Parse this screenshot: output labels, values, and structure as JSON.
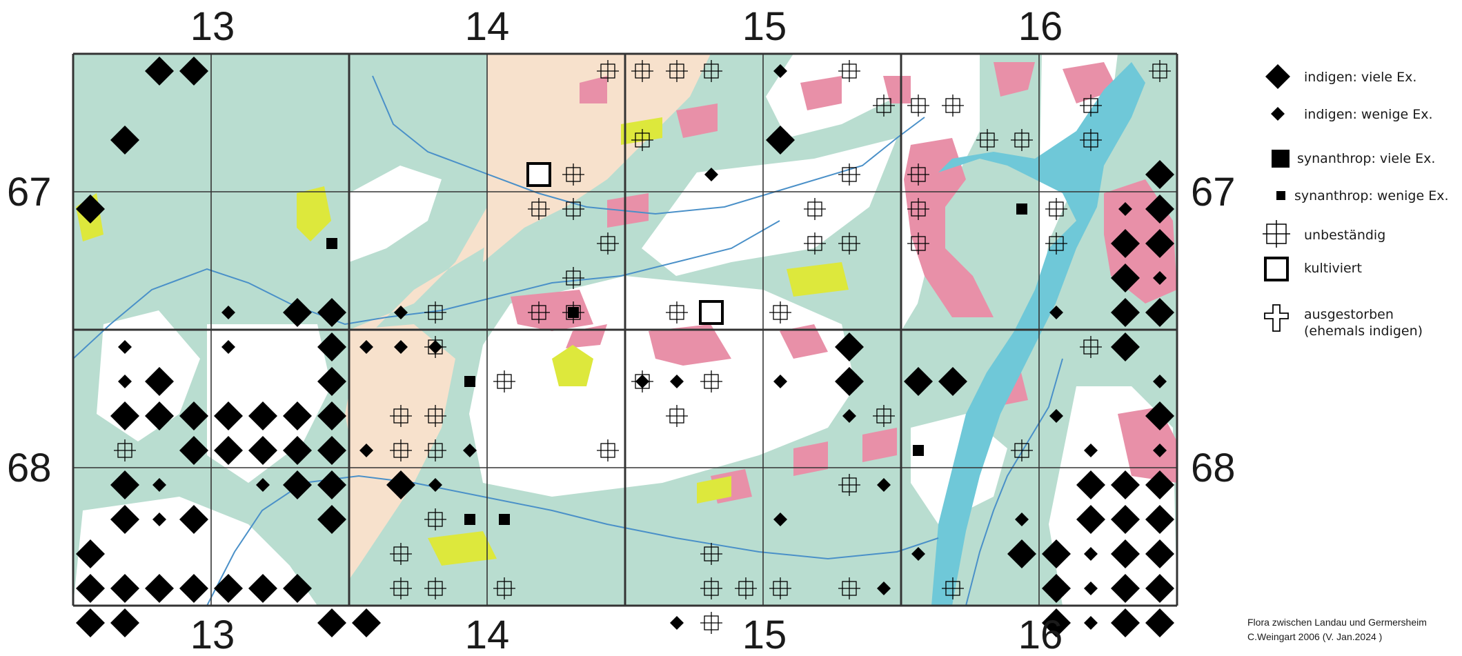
{
  "map": {
    "columns": [
      "13",
      "14",
      "15",
      "16"
    ],
    "rows": [
      "67",
      "68"
    ],
    "colors": {
      "forest": "#b9ddd0",
      "settlement": "#e890a8",
      "open_land": "#ffffff",
      "farmland": "#f7e1cc",
      "grassland": "#dde83c",
      "water": "#6fc8d8",
      "river": "#4a90c8",
      "grid": "#333333"
    },
    "symbols": {
      "indigen_viele": [
        {
          "c": 1,
          "r": 2
        },
        {
          "c": 2,
          "r": 0
        },
        {
          "c": 3,
          "r": 0
        },
        {
          "c": 0,
          "r": 4
        },
        {
          "c": 4,
          "r": 11
        },
        {
          "c": 2,
          "r": 9
        },
        {
          "c": 1,
          "r": 10
        },
        {
          "c": 2,
          "r": 10
        },
        {
          "c": 3,
          "r": 10
        },
        {
          "c": 3,
          "r": 11
        },
        {
          "c": 1,
          "r": 12
        },
        {
          "c": 3,
          "r": 13
        },
        {
          "c": 1,
          "r": 13
        },
        {
          "c": 0,
          "r": 14
        },
        {
          "c": 0,
          "r": 15
        },
        {
          "c": 1,
          "r": 15
        },
        {
          "c": 2,
          "r": 15
        },
        {
          "c": 3,
          "r": 15
        },
        {
          "c": 0,
          "r": 16
        },
        {
          "c": 1,
          "r": 16
        },
        {
          "c": 4,
          "r": 10
        },
        {
          "c": 5,
          "r": 10
        },
        {
          "c": 6,
          "r": 10
        },
        {
          "c": 7,
          "r": 9
        },
        {
          "c": 7,
          "r": 10
        },
        {
          "c": 7,
          "r": 11
        },
        {
          "c": 5,
          "r": 11
        },
        {
          "c": 6,
          "r": 11
        },
        {
          "c": 6,
          "r": 12
        },
        {
          "c": 7,
          "r": 12
        },
        {
          "c": 7,
          "r": 13
        },
        {
          "c": 4,
          "r": 15
        },
        {
          "c": 5,
          "r": 15
        },
        {
          "c": 6,
          "r": 15
        },
        {
          "c": 7,
          "r": 16
        },
        {
          "c": 8,
          "r": 16
        },
        {
          "c": 7,
          "r": 7
        },
        {
          "c": 7,
          "r": 8
        },
        {
          "c": 6,
          "r": 7
        },
        {
          "c": 9,
          "r": 12
        },
        {
          "c": 20,
          "r": 2
        },
        {
          "c": 22,
          "r": 8
        },
        {
          "c": 22,
          "r": 9
        },
        {
          "c": 24,
          "r": 9
        },
        {
          "c": 25,
          "r": 9
        },
        {
          "c": 31,
          "r": 3
        },
        {
          "c": 31,
          "r": 4
        },
        {
          "c": 30,
          "r": 5
        },
        {
          "c": 31,
          "r": 5
        },
        {
          "c": 30,
          "r": 6
        },
        {
          "c": 30,
          "r": 7
        },
        {
          "c": 31,
          "r": 7
        },
        {
          "c": 30,
          "r": 8
        },
        {
          "c": 31,
          "r": 10
        },
        {
          "c": 29,
          "r": 12
        },
        {
          "c": 30,
          "r": 12
        },
        {
          "c": 31,
          "r": 12
        },
        {
          "c": 29,
          "r": 13
        },
        {
          "c": 30,
          "r": 13
        },
        {
          "c": 31,
          "r": 13
        },
        {
          "c": 27,
          "r": 14
        },
        {
          "c": 28,
          "r": 14
        },
        {
          "c": 30,
          "r": 14
        },
        {
          "c": 31,
          "r": 14
        },
        {
          "c": 28,
          "r": 15
        },
        {
          "c": 30,
          "r": 15
        },
        {
          "c": 31,
          "r": 15
        },
        {
          "c": 28,
          "r": 16
        },
        {
          "c": 30,
          "r": 16
        },
        {
          "c": 31,
          "r": 16
        }
      ],
      "indigen_wenige": [
        {
          "c": 1,
          "r": 8
        },
        {
          "c": 1,
          "r": 9
        },
        {
          "c": 2,
          "r": 12
        },
        {
          "c": 2,
          "r": 13
        },
        {
          "c": 4,
          "r": 7
        },
        {
          "c": 4,
          "r": 8
        },
        {
          "c": 8,
          "r": 8
        },
        {
          "c": 8,
          "r": 11
        },
        {
          "c": 5,
          "r": 12
        },
        {
          "c": 9,
          "r": 7
        },
        {
          "c": 9,
          "r": 8
        },
        {
          "c": 10,
          "r": 8
        },
        {
          "c": 10,
          "r": 12
        },
        {
          "c": 11,
          "r": 11
        },
        {
          "c": 16,
          "r": 9
        },
        {
          "c": 17,
          "r": 9
        },
        {
          "c": 20,
          "r": 0
        },
        {
          "c": 18,
          "r": 3
        },
        {
          "c": 20,
          "r": 9
        },
        {
          "c": 17,
          "r": 16
        },
        {
          "c": 20,
          "r": 13
        },
        {
          "c": 22,
          "r": 10
        },
        {
          "c": 23,
          "r": 12
        },
        {
          "c": 23,
          "r": 15
        },
        {
          "c": 24,
          "r": 14
        },
        {
          "c": 28,
          "r": 7
        },
        {
          "c": 28,
          "r": 10
        },
        {
          "c": 27,
          "r": 13
        },
        {
          "c": 29,
          "r": 13
        },
        {
          "c": 29,
          "r": 11
        },
        {
          "c": 29,
          "r": 14
        },
        {
          "c": 29,
          "r": 15
        },
        {
          "c": 29,
          "r": 16
        },
        {
          "c": 30,
          "r": 4
        },
        {
          "c": 31,
          "r": 6
        },
        {
          "c": 31,
          "r": 9
        },
        {
          "c": 31,
          "r": 11
        }
      ],
      "synanthrop_viele": [
        {
          "c": 7,
          "r": 5
        },
        {
          "c": 11,
          "r": 9
        },
        {
          "c": 11,
          "r": 13
        },
        {
          "c": 12,
          "r": 13
        },
        {
          "c": 14,
          "r": 7
        },
        {
          "c": 24,
          "r": 11
        },
        {
          "c": 27,
          "r": 4
        }
      ],
      "synanthrop_wenige": [],
      "unbestaendig": [
        {
          "c": 1,
          "r": 11
        },
        {
          "c": 7,
          "r": 13
        },
        {
          "c": 10,
          "r": 7
        },
        {
          "c": 10,
          "r": 8
        },
        {
          "c": 9,
          "r": 10
        },
        {
          "c": 10,
          "r": 10
        },
        {
          "c": 9,
          "r": 11
        },
        {
          "c": 10,
          "r": 11
        },
        {
          "c": 10,
          "r": 13
        },
        {
          "c": 9,
          "r": 14
        },
        {
          "c": 9,
          "r": 15
        },
        {
          "c": 10,
          "r": 15
        },
        {
          "c": 12,
          "r": 15
        },
        {
          "c": 12,
          "r": 9
        },
        {
          "c": 13,
          "r": 4
        },
        {
          "c": 13,
          "r": 3
        },
        {
          "c": 14,
          "r": 3
        },
        {
          "c": 14,
          "r": 4
        },
        {
          "c": 14,
          "r": 6
        },
        {
          "c": 14,
          "r": 7
        },
        {
          "c": 15,
          "r": 0
        },
        {
          "c": 16,
          "r": 0
        },
        {
          "c": 16,
          "r": 2
        },
        {
          "c": 15,
          "r": 5
        },
        {
          "c": 16,
          "r": 9
        },
        {
          "c": 15,
          "r": 11
        },
        {
          "c": 13,
          "r": 7
        },
        {
          "c": 17,
          "r": 0
        },
        {
          "c": 18,
          "r": 0
        },
        {
          "c": 20,
          "r": 2
        },
        {
          "c": 17,
          "r": 7
        },
        {
          "c": 20,
          "r": 7
        },
        {
          "c": 18,
          "r": 9
        },
        {
          "c": 17,
          "r": 10
        },
        {
          "c": 18,
          "r": 14
        },
        {
          "c": 18,
          "r": 15
        },
        {
          "c": 19,
          "r": 15
        },
        {
          "c": 20,
          "r": 15
        },
        {
          "c": 18,
          "r": 16
        },
        {
          "c": 22,
          "r": 0
        },
        {
          "c": 23,
          "r": 1
        },
        {
          "c": 24,
          "r": 1
        },
        {
          "c": 25,
          "r": 1
        },
        {
          "c": 22,
          "r": 3
        },
        {
          "c": 24,
          "r": 3
        },
        {
          "c": 21,
          "r": 4
        },
        {
          "c": 24,
          "r": 4
        },
        {
          "c": 21,
          "r": 5
        },
        {
          "c": 22,
          "r": 5
        },
        {
          "c": 24,
          "r": 5
        },
        {
          "c": 22,
          "r": 9
        },
        {
          "c": 23,
          "r": 10
        },
        {
          "c": 22,
          "r": 12
        },
        {
          "c": 22,
          "r": 15
        },
        {
          "c": 26,
          "r": 2
        },
        {
          "c": 27,
          "r": 2
        },
        {
          "c": 28,
          "r": 4
        },
        {
          "c": 28,
          "r": 5
        },
        {
          "c": 25,
          "r": 15
        },
        {
          "c": 27,
          "r": 11
        },
        {
          "c": 29,
          "r": 8
        },
        {
          "c": 29,
          "r": 1
        },
        {
          "c": 29,
          "r": 2
        },
        {
          "c": 31,
          "r": 0
        },
        {
          "c": 28,
          "r": 15
        }
      ],
      "kultiviert": [
        {
          "c": 13,
          "r": 3
        },
        {
          "c": 18,
          "r": 7
        }
      ],
      "ausgestorben": []
    }
  },
  "legend": {
    "items": [
      {
        "symbol": "indigen_viele",
        "label": "indigen: viele Ex."
      },
      {
        "symbol": "indigen_wenige",
        "label": "indigen: wenige Ex."
      },
      {
        "symbol": "synanthrop_viele",
        "label": "synanthrop: viele Ex."
      },
      {
        "symbol": "synanthrop_wenige",
        "label": "synanthrop: wenige Ex."
      },
      {
        "symbol": "unbestaendig",
        "label": "unbeständig"
      },
      {
        "symbol": "kultiviert",
        "label": "kultiviert"
      },
      {
        "symbol": "ausgestorben",
        "label": "ausgestorben",
        "label2": "(ehemals indigen)"
      }
    ]
  },
  "credit": {
    "line1": "Flora zwischen Landau und Germersheim",
    "line2": "C.Weingart 2006 (V. Jan.2024 )"
  }
}
